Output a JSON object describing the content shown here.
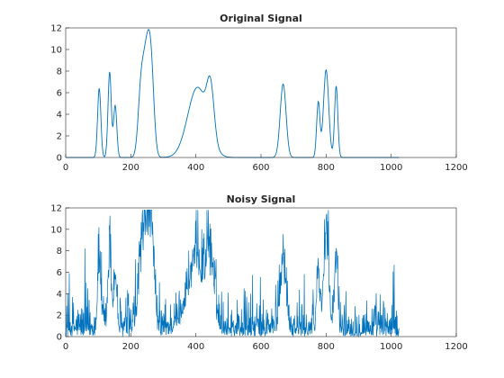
{
  "colors": {
    "line": "#0072bd",
    "axis": "#262626",
    "background": "#ffffff"
  },
  "chart_data": [
    {
      "type": "line",
      "title": "Original Signal",
      "xlim": [
        0,
        1200
      ],
      "ylim": [
        0,
        12
      ],
      "xticks": [
        0,
        200,
        400,
        600,
        800,
        1000,
        1200
      ],
      "yticks": [
        0,
        2,
        4,
        6,
        8,
        10,
        12
      ],
      "grid": false,
      "x_range": [
        1,
        1024
      ],
      "peaks": [
        {
          "center": 103,
          "height": 6.4,
          "width": 5
        },
        {
          "center": 135,
          "height": 7.9,
          "width": 5
        },
        {
          "center": 152,
          "height": 4.8,
          "width": 5
        },
        {
          "center": 232,
          "height": 6.6,
          "width": 9
        },
        {
          "center": 248,
          "height": 7.4,
          "width": 9
        },
        {
          "center": 262,
          "height": 8.3,
          "width": 9
        },
        {
          "center": 405,
          "height": 6.5,
          "width": 30
        },
        {
          "center": 445,
          "height": 4.7,
          "width": 11
        },
        {
          "center": 668,
          "height": 6.8,
          "width": 9
        },
        {
          "center": 776,
          "height": 5.1,
          "width": 5
        },
        {
          "center": 800,
          "height": 8.1,
          "width": 8
        },
        {
          "center": 831,
          "height": 6.6,
          "width": 5
        }
      ]
    },
    {
      "type": "line",
      "title": "Noisy Signal",
      "xlim": [
        0,
        1200
      ],
      "ylim": [
        0,
        12
      ],
      "xticks": [
        0,
        200,
        400,
        600,
        800,
        1000,
        1200
      ],
      "yticks": [
        0,
        2,
        4,
        6,
        8,
        10,
        12
      ],
      "grid": false,
      "x_range": [
        1,
        1024
      ],
      "noise_scale": 1.2,
      "noise_seed": 12345
    }
  ]
}
